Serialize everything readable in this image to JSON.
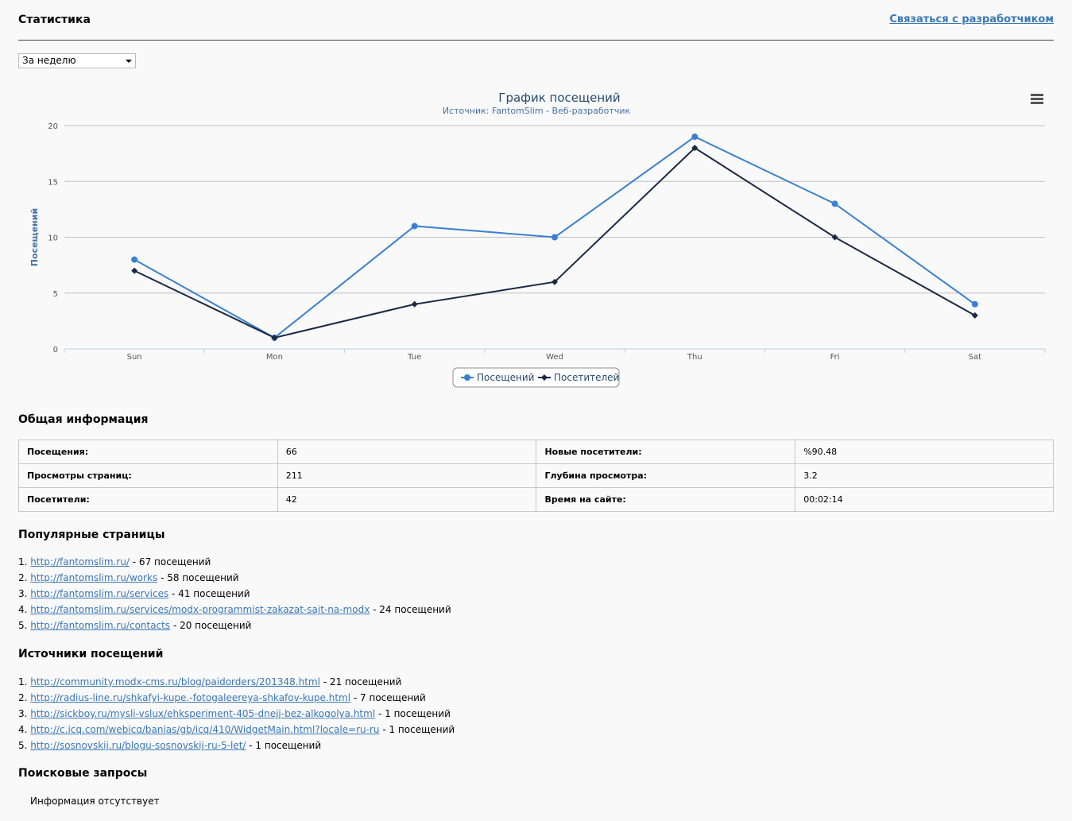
{
  "header": {
    "title": "Статистика",
    "dev_link": "Связаться с разработчиком"
  },
  "period_select": {
    "value": "За неделю"
  },
  "chart_data": {
    "type": "line",
    "title": "График посещений",
    "subtitle": "Источник: FantomSlim - Веб-разработчик",
    "ylabel": "Посещений",
    "xlabel": "",
    "categories": [
      "Sun",
      "Mon",
      "Tue",
      "Wed",
      "Thu",
      "Fri",
      "Sat"
    ],
    "yticks": [
      0,
      5,
      10,
      15,
      20
    ],
    "ylim": [
      0,
      20
    ],
    "grid": true,
    "legend_position": "bottom-center",
    "series": [
      {
        "name": "Посещений",
        "values": [
          8,
          1,
          11,
          10,
          19,
          13,
          4
        ],
        "color": "#3a80d2",
        "marker": "circle"
      },
      {
        "name": "Посетителей",
        "values": [
          7,
          1,
          4,
          6,
          18,
          10,
          3
        ],
        "color": "#1a2a44",
        "marker": "diamond"
      }
    ]
  },
  "general": {
    "title": "Общая информация",
    "rows": [
      {
        "l1": "Посещения:",
        "v1": "66",
        "l2": "Новые посетители:",
        "v2": "%90.48"
      },
      {
        "l1": "Просмотры страниц:",
        "v1": "211",
        "l2": "Глубина просмотра:",
        "v2": "3.2"
      },
      {
        "l1": "Посетители:",
        "v1": "42",
        "l2": "Время на сайте:",
        "v2": "00:02:14"
      }
    ]
  },
  "popular": {
    "title": "Популярные страницы",
    "items": [
      {
        "num": "1.",
        "url": "http://fantomslim.ru/",
        "count": " - 67 посещений"
      },
      {
        "num": "2.",
        "url": "http://fantomslim.ru/works",
        "count": " - 58 посещений"
      },
      {
        "num": "3.",
        "url": "http://fantomslim.ru/services",
        "count": " - 41 посещений"
      },
      {
        "num": "4.",
        "url": "http://fantomslim.ru/services/modx-programmist-zakazat-sajt-na-modx",
        "count": " - 24 посещений"
      },
      {
        "num": "5.",
        "url": "http://fantomslim.ru/contacts",
        "count": " - 20 посещений"
      }
    ]
  },
  "sources": {
    "title": "Источники посещений",
    "items": [
      {
        "num": "1.",
        "url": "http://community.modx-cms.ru/blog/paidorders/201348.html",
        "count": " - 21 посещений"
      },
      {
        "num": "2.",
        "url": "http://radius-line.ru/shkafyi-kupe.-fotogaleereya-shkafov-kupe.html",
        "count": " - 7 посещений"
      },
      {
        "num": "3.",
        "url": "http://sickboy.ru/mysli-vslux/ehksperiment-405-dnejj-bez-alkogolya.html",
        "count": " - 1 посещений"
      },
      {
        "num": "4.",
        "url": "http://c.icq.com/webicq/banias/gb/icq/410/WidgetMain.html?locale=ru-ru",
        "count": " - 1 посещений"
      },
      {
        "num": "5.",
        "url": "http://sosnovskij.ru/blogu-sosnovskij-ru-5-let/",
        "count": " - 1 посещений"
      }
    ]
  },
  "search": {
    "title": "Поисковые запросы",
    "empty": "Информация отсутствует"
  },
  "icons": {
    "chart_menu": "menu-icon"
  }
}
